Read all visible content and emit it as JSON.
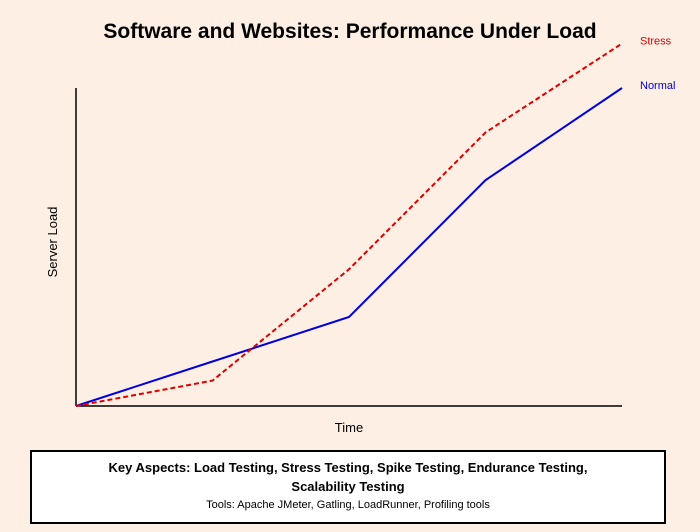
{
  "chart_data": {
    "type": "line",
    "title": "Software and Websites: Performance Under Load",
    "xlabel": "Time",
    "ylabel": "Server Load",
    "x": [
      0,
      1,
      2,
      3,
      4
    ],
    "xlim": [
      0,
      4
    ],
    "ylim": [
      0,
      100
    ],
    "grid": false,
    "legend": "right-of-lines",
    "series": [
      {
        "name": "Normal",
        "color": "#0000dd",
        "style": "solid",
        "values": [
          0,
          14,
          28,
          71,
          100
        ]
      },
      {
        "name": "Stress",
        "color": "#dd0000",
        "style": "dashed",
        "values": [
          0,
          8,
          43,
          86,
          114
        ]
      }
    ]
  },
  "info": {
    "heading": "Key Aspects: Load Testing, Stress Testing, Spike Testing, Endurance Testing, Scalability Testing",
    "tools": "Tools: Apache JMeter, Gatling, LoadRunner, Profiling tools"
  }
}
